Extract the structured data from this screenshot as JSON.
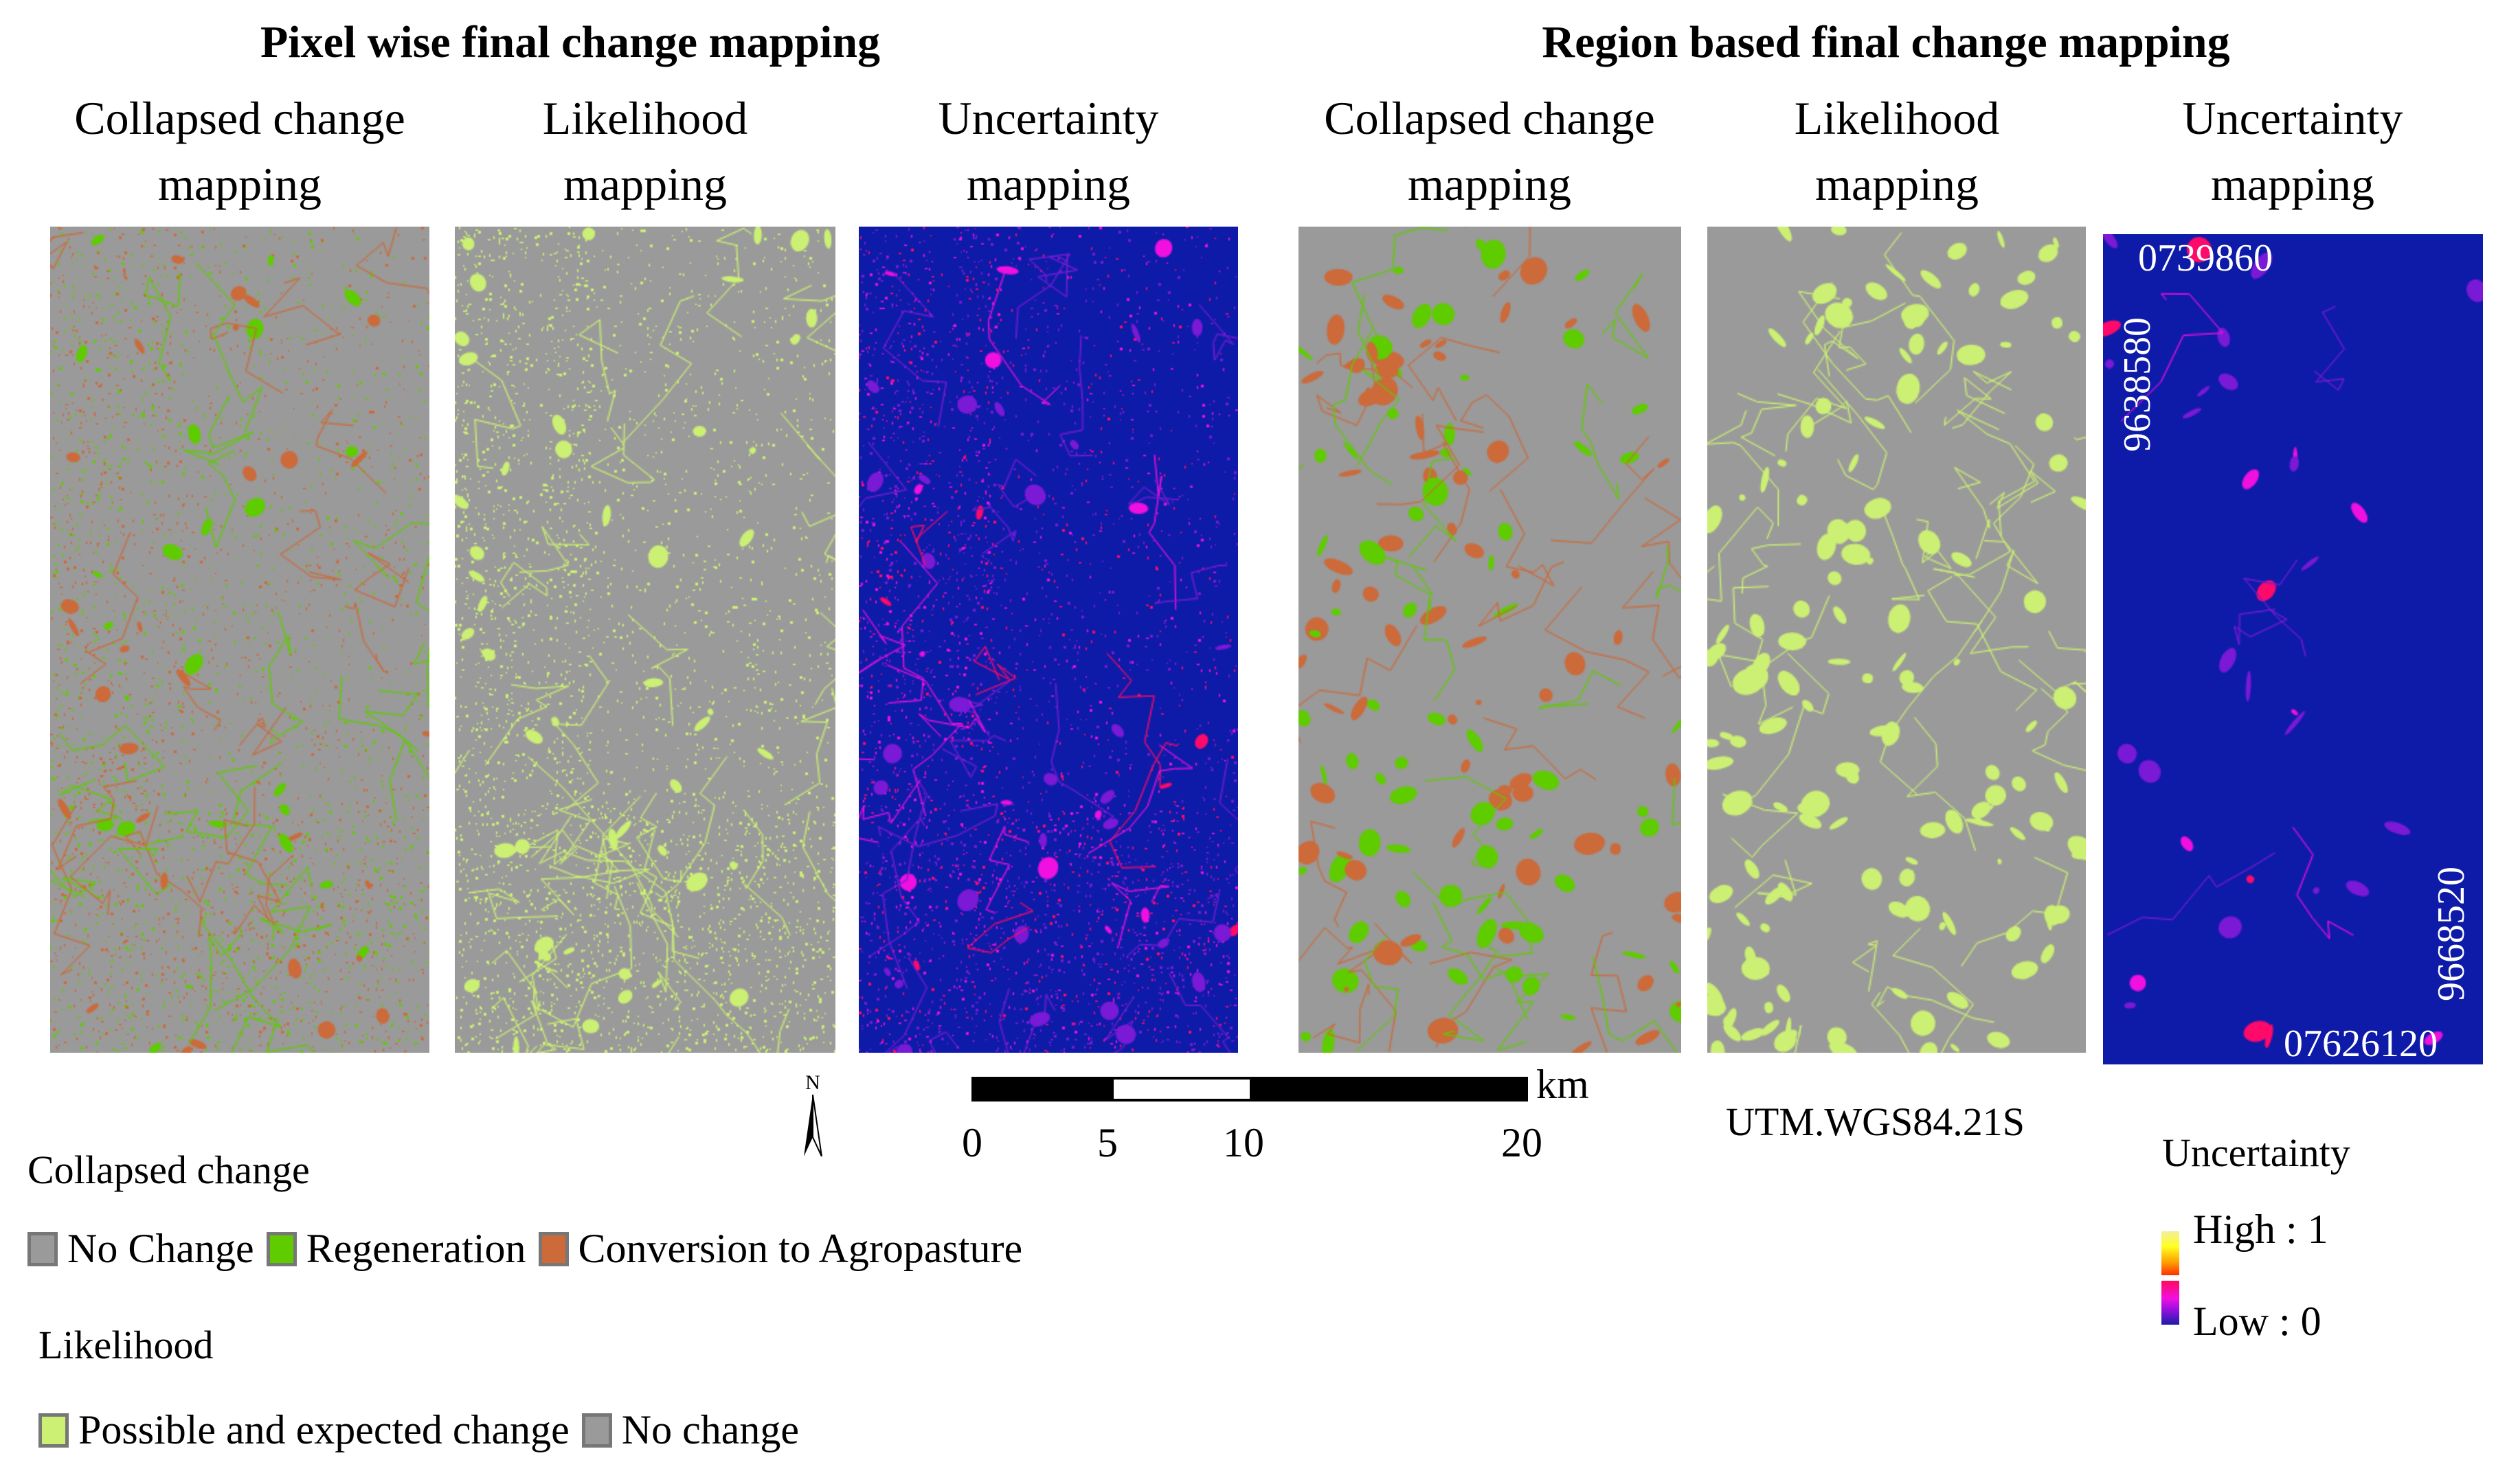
{
  "groups": [
    {
      "title": "Pixel wise final change mapping"
    },
    {
      "title": "Region based final change mapping"
    }
  ],
  "panels": [
    {
      "group": "pixel",
      "title_line1": "Collapsed change",
      "title_line2": "mapping",
      "type": "collapsed"
    },
    {
      "group": "pixel",
      "title_line1": "Likelihood",
      "title_line2": "mapping",
      "type": "likelihood"
    },
    {
      "group": "pixel",
      "title_line1": "Uncertainty",
      "title_line2": "mapping",
      "type": "uncertainty"
    },
    {
      "group": "region",
      "title_line1": "Collapsed change",
      "title_line2": "mapping",
      "type": "collapsed"
    },
    {
      "group": "region",
      "title_line1": "Likelihood",
      "title_line2": "mapping",
      "type": "likelihood"
    },
    {
      "group": "region",
      "title_line1": "Uncertainty",
      "title_line2": "mapping",
      "type": "uncertainty"
    }
  ],
  "coordinates": {
    "top_easting": "0739860",
    "left_northing": "9638580",
    "right_northing": "9668520",
    "bottom_easting": "07626120"
  },
  "north_arrow": {
    "label": "N"
  },
  "scale_bar": {
    "unit": "km",
    "ticks": [
      "0",
      "5",
      "10",
      "20"
    ]
  },
  "projection": "UTM.WGS84.21S",
  "legends": {
    "collapsed_change": {
      "heading": "Collapsed change",
      "items": [
        {
          "label": "No Change",
          "color": "#9a9a9a"
        },
        {
          "label": "Regeneration",
          "color": "#5fcc00"
        },
        {
          "label": "Conversion to Agropasture",
          "color": "#cc6a3a"
        }
      ]
    },
    "likelihood": {
      "heading": "Likelihood",
      "items": [
        {
          "label": "Possible and expected change",
          "color": "#ccf074"
        },
        {
          "label": "No change",
          "color": "#9a9a9a"
        }
      ]
    },
    "uncertainty": {
      "heading": "Uncertainty",
      "high_label": "High : 1",
      "low_label": "Low : 0",
      "ramp_colors": [
        "#f2ee9a",
        "#ffff20",
        "#ffa000",
        "#ff3000",
        "#ff0a5a",
        "#f010e0",
        "#9a10e0",
        "#1b1ca8"
      ]
    }
  },
  "colors": {
    "background_gray": "#9a9a9a",
    "regeneration_green": "#5fcc00",
    "conversion_orange": "#cc6a3a",
    "likelihood_yellow": "#ccf074",
    "uncertainty_low_blue": "#0e1aa8",
    "uncertainty_mid_purple": "#7a1ad6",
    "uncertainty_magenta": "#f010e0",
    "uncertainty_pink": "#ff0a6a"
  }
}
